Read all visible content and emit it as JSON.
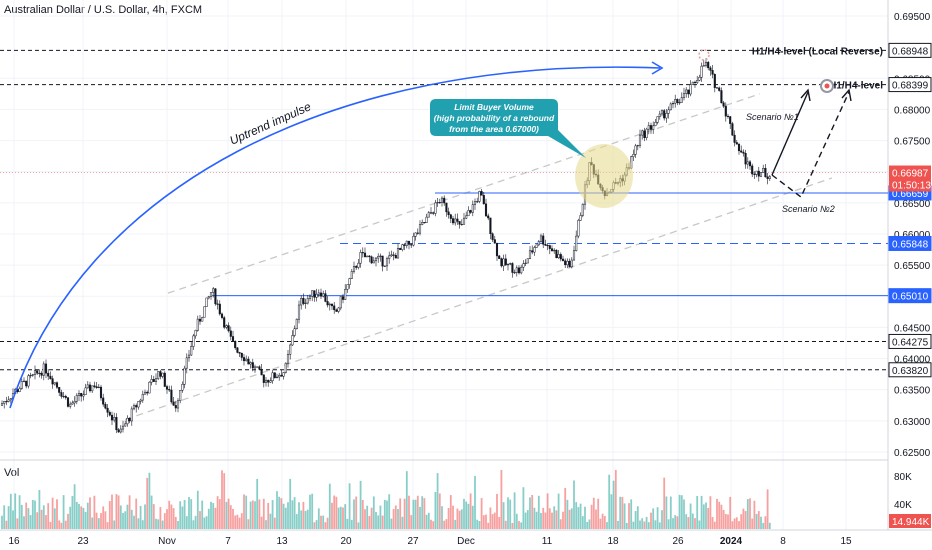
{
  "header": {
    "title": "Australian Dollar / U.S. Dollar, 4h, FXCM"
  },
  "volume_pane": {
    "label": "Vol"
  },
  "colors": {
    "up": "#26a69a",
    "down": "#ef5350",
    "level": "#2962ff",
    "accent": "#2962ff",
    "price_tag": "#ef5350",
    "callout": "#21a0b0",
    "zone": "#e8d98a"
  },
  "chart_data": {
    "type": "candlestick",
    "title": "Australian Dollar / U.S. Dollar, 4h, FXCM",
    "ylim": [
      0.625,
      0.695
    ],
    "y_ticks": [
      "0.69500",
      "0.68500",
      "0.68000",
      "0.67500",
      "0.67000",
      "0.66500",
      "0.66000",
      "0.65500",
      "0.65000",
      "0.64500",
      "0.64000",
      "0.63500",
      "0.63000",
      "0.62500"
    ],
    "x_ticks": [
      "16",
      "23",
      "Nov",
      "7",
      "13",
      "20",
      "27",
      "Dec",
      "11",
      "18",
      "26",
      "2024",
      "8",
      "15"
    ],
    "price_path": [
      [
        0,
        0.6325
      ],
      [
        20,
        0.6355
      ],
      [
        45,
        0.6385
      ],
      [
        70,
        0.6325
      ],
      [
        95,
        0.636
      ],
      [
        120,
        0.628
      ],
      [
        140,
        0.6335
      ],
      [
        160,
        0.638
      ],
      [
        175,
        0.632
      ],
      [
        195,
        0.6445
      ],
      [
        212,
        0.651
      ],
      [
        232,
        0.6425
      ],
      [
        265,
        0.6365
      ],
      [
        285,
        0.638
      ],
      [
        300,
        0.649
      ],
      [
        320,
        0.651
      ],
      [
        335,
        0.647
      ],
      [
        360,
        0.6565
      ],
      [
        385,
        0.6555
      ],
      [
        410,
        0.6585
      ],
      [
        440,
        0.6655
      ],
      [
        460,
        0.661
      ],
      [
        480,
        0.6665
      ],
      [
        500,
        0.6555
      ],
      [
        520,
        0.654
      ],
      [
        540,
        0.6595
      ],
      [
        570,
        0.6545
      ],
      [
        583,
        0.6655
      ],
      [
        590,
        0.6715
      ],
      [
        605,
        0.6665
      ],
      [
        625,
        0.6695
      ],
      [
        640,
        0.6755
      ],
      [
        665,
        0.6795
      ],
      [
        690,
        0.683
      ],
      [
        705,
        0.6875
      ],
      [
        720,
        0.6825
      ],
      [
        735,
        0.675
      ],
      [
        750,
        0.6705
      ],
      [
        770,
        0.6695
      ]
    ],
    "horizontal_levels": [
      {
        "label": "H1/H4-level (Local Reverse)",
        "value": 0.68948,
        "style": "dashed",
        "color": "#131722"
      },
      {
        "label": "H1/H4-level",
        "value": 0.68399,
        "style": "dashed",
        "color": "#131722"
      },
      {
        "label": "",
        "value": 0.66659,
        "style": "solid",
        "color": "#2962ff"
      },
      {
        "label": "",
        "value": 0.65848,
        "style": "dashed",
        "color": "#2962ff"
      },
      {
        "label": "",
        "value": 0.6501,
        "style": "solid",
        "color": "#2962ff"
      },
      {
        "label": "",
        "value": 0.64275,
        "style": "dashed",
        "color": "#131722"
      },
      {
        "label": "",
        "value": 0.6382,
        "style": "dashed",
        "color": "#131722"
      }
    ],
    "price_labels": [
      {
        "text": "0.68948",
        "value": 0.68948,
        "style": "dark"
      },
      {
        "text": "0.68399",
        "value": 0.68399,
        "style": "dark"
      },
      {
        "text": "0.66659",
        "value": 0.66659,
        "style": "blue"
      },
      {
        "text": "0.65848",
        "value": 0.65848,
        "style": "blue"
      },
      {
        "text": "0.65010",
        "value": 0.6501,
        "style": "blue"
      },
      {
        "text": "0.64275",
        "value": 0.64275,
        "style": "dark"
      },
      {
        "text": "0.63820",
        "value": 0.6382,
        "style": "dark"
      }
    ],
    "current_price": {
      "value": 0.66987,
      "text": "0.66987",
      "countdown": "01:50:13"
    },
    "volume": {
      "ticks": [
        "80K",
        "40K"
      ],
      "current": "14.944K"
    },
    "annotations": {
      "uptrend": "Uptrend impulse",
      "callout_line1": "Limit Buyer Volume",
      "callout_line2": "(high probability of a rebound",
      "callout_line3": "from the area 0.67000)",
      "scenario1": "Scenario №1",
      "scenario2": "Scenario №2"
    }
  }
}
